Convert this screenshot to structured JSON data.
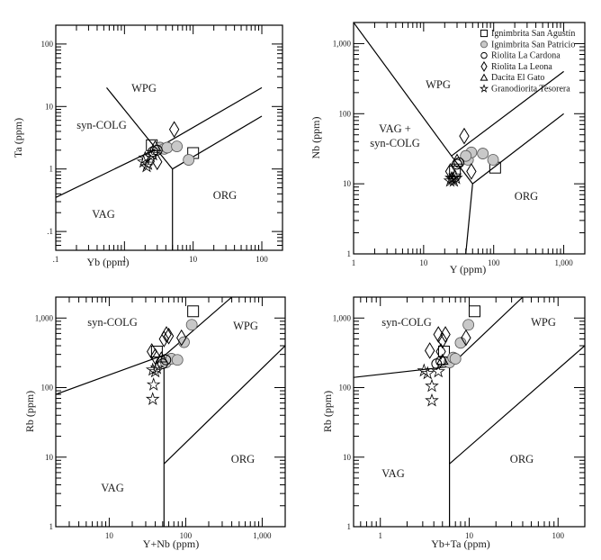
{
  "figure": {
    "legend": [
      {
        "symbol": "square",
        "label": "Ignimbrita San Agustín"
      },
      {
        "symbol": "circle-filled",
        "label": "Ignimbrita San Patricio"
      },
      {
        "symbol": "circle-open",
        "label": "Riolita La Cardona"
      },
      {
        "symbol": "diamond",
        "label": "Riolita La Leona"
      },
      {
        "symbol": "triangle",
        "label": "Dacita El Gato"
      },
      {
        "symbol": "star",
        "label": "Granodiorita Tesorera"
      }
    ],
    "colors": {
      "frame": "#000000",
      "filled_marker": "#c8c8c8",
      "text": "#1a1a1a"
    }
  },
  "chart_data": [
    {
      "type": "scatter",
      "title": "",
      "xlabel": "Yb (ppm)",
      "ylabel": "Ta (ppm)",
      "xscale": "log",
      "yscale": "log",
      "xlim": [
        0.1,
        200
      ],
      "ylim": [
        0.05,
        200
      ],
      "xticks": [
        ".1",
        "1",
        "10",
        "100"
      ],
      "yticks": [
        ".1",
        "1",
        "10",
        "100"
      ],
      "regions": [
        "WPG",
        "syn-COLG",
        "VAG",
        "ORG"
      ],
      "series": [
        {
          "name": "Ignimbrita San Agustín",
          "points": [
            [
              2.5,
              2.4
            ],
            [
              10,
              1.8
            ]
          ]
        },
        {
          "name": "Ignimbrita San Patricio",
          "points": [
            [
              3.3,
              2.2
            ],
            [
              3.8,
              2.1
            ],
            [
              4.2,
              2.2
            ],
            [
              5.8,
              2.3
            ],
            [
              8.6,
              1.4
            ]
          ]
        },
        {
          "name": "Riolita La Cardona",
          "points": [
            [
              2.6,
              1.9
            ],
            [
              3.0,
              2.0
            ]
          ]
        },
        {
          "name": "Riolita La Leona",
          "points": [
            [
              5.3,
              4.3
            ],
            [
              3.0,
              1.3
            ]
          ]
        },
        {
          "name": "Dacita El Gato",
          "points": [
            [
              2.8,
              2.3
            ]
          ]
        },
        {
          "name": "Granodiorita Tesorera",
          "points": [
            [
              2.0,
              1.5
            ],
            [
              2.2,
              1.2
            ],
            [
              2.4,
              1.6
            ],
            [
              1.9,
              1.3
            ],
            [
              2.1,
              1.1
            ],
            [
              2.6,
              1.7
            ]
          ]
        }
      ]
    },
    {
      "type": "scatter",
      "title": "",
      "xlabel": "Y (ppm)",
      "ylabel": "Nb (ppm)",
      "xscale": "log",
      "yscale": "log",
      "xlim": [
        1,
        2000
      ],
      "ylim": [
        1,
        2000
      ],
      "xticks": [
        "1",
        "10",
        "100",
        "1,000"
      ],
      "yticks": [
        "1",
        "10",
        "100",
        "1,000"
      ],
      "regions": [
        "WPG",
        "VAG + syn-COLG",
        "ORG"
      ],
      "series": [
        {
          "name": "Ignimbrita San Agustín",
          "points": [
            [
              28,
              15
            ],
            [
              105,
              17
            ]
          ]
        },
        {
          "name": "Ignimbrita San Patricio",
          "points": [
            [
              43,
              22
            ],
            [
              48,
              28
            ],
            [
              70,
              27
            ],
            [
              98,
              22
            ],
            [
              40,
              25
            ]
          ]
        },
        {
          "name": "Riolita La Cardona",
          "points": [
            [
              30,
              19
            ],
            [
              32,
              20
            ]
          ]
        },
        {
          "name": "Riolita La Leona",
          "points": [
            [
              38,
              48
            ],
            [
              48,
              15
            ],
            [
              24,
              15
            ]
          ]
        },
        {
          "name": "Dacita El Gato",
          "points": [
            [
              30,
              22
            ]
          ]
        },
        {
          "name": "Granodiorita Tesorera",
          "points": [
            [
              25,
              12
            ],
            [
              27,
              11
            ],
            [
              29,
              12
            ],
            [
              24,
              11
            ],
            [
              28,
              13
            ],
            [
              26,
              12
            ]
          ]
        }
      ]
    },
    {
      "type": "scatter",
      "title": "",
      "xlabel": "Y+Nb (ppm)",
      "ylabel": "Rb (ppm)",
      "xscale": "log",
      "yscale": "log",
      "xlim": [
        2,
        2000
      ],
      "ylim": [
        1,
        2000
      ],
      "xticks": [
        "10",
        "100",
        "1,000"
      ],
      "yticks": [
        "1",
        "10",
        "100",
        "1,000"
      ],
      "regions": [
        "syn-COLG",
        "WPG",
        "VAG",
        "ORG"
      ],
      "series": [
        {
          "name": "Ignimbrita San Agustín",
          "points": [
            [
              42,
              330
            ],
            [
              125,
              1250
            ]
          ]
        },
        {
          "name": "Ignimbrita San Patricio",
          "points": [
            [
              120,
              800
            ],
            [
              95,
              450
            ],
            [
              55,
              230
            ],
            [
              65,
              260
            ],
            [
              78,
              250
            ]
          ]
        },
        {
          "name": "Riolita La Cardona",
          "points": [
            [
              50,
              220
            ],
            [
              55,
              250
            ]
          ]
        },
        {
          "name": "Riolita La Leona",
          "points": [
            [
              52,
              500
            ],
            [
              56,
              580
            ],
            [
              60,
              550
            ],
            [
              88,
              520
            ],
            [
              36,
              330
            ],
            [
              40,
              280
            ]
          ]
        },
        {
          "name": "Dacita El Gato",
          "points": [
            [
              48,
              270
            ]
          ]
        },
        {
          "name": "Granodiorita Tesorera",
          "points": [
            [
              37,
              180
            ],
            [
              40,
              170
            ],
            [
              38,
              110
            ],
            [
              37,
              68
            ],
            [
              42,
              190
            ]
          ]
        }
      ]
    },
    {
      "type": "scatter",
      "title": "",
      "xlabel": "Yb+Ta (ppm)",
      "ylabel": "Rb (ppm)",
      "xscale": "log",
      "yscale": "log",
      "xlim": [
        0.5,
        200
      ],
      "ylim": [
        1,
        2000
      ],
      "xticks": [
        "1",
        "10",
        "100"
      ],
      "yticks": [
        "1",
        "10",
        "100",
        "1,000"
      ],
      "regions": [
        "syn-COLG",
        "WPG",
        "VAG",
        "ORG"
      ],
      "series": [
        {
          "name": "Ignimbrita San Agustín",
          "points": [
            [
              5.2,
              330
            ],
            [
              11.5,
              1250
            ]
          ]
        },
        {
          "name": "Ignimbrita San Patricio",
          "points": [
            [
              9.8,
              800
            ],
            [
              8.0,
              440
            ],
            [
              6.0,
              230
            ],
            [
              6.6,
              270
            ],
            [
              7.0,
              260
            ]
          ]
        },
        {
          "name": "Riolita La Cardona",
          "points": [
            [
              4.3,
              220
            ],
            [
              4.8,
              240
            ]
          ]
        },
        {
          "name": "Riolita La Leona",
          "points": [
            [
              4.5,
              580
            ],
            [
              5.4,
              580
            ],
            [
              5.0,
              480
            ],
            [
              9.2,
              520
            ],
            [
              3.6,
              340
            ],
            [
              4.8,
              330
            ]
          ]
        },
        {
          "name": "Dacita El Gato",
          "points": [
            [
              5.0,
              250
            ]
          ]
        },
        {
          "name": "Granodiorita Tesorera",
          "points": [
            [
              3.1,
              175
            ],
            [
              4.5,
              170
            ],
            [
              3.8,
              105
            ],
            [
              3.8,
              65
            ],
            [
              3.4,
              160
            ]
          ]
        }
      ]
    }
  ]
}
